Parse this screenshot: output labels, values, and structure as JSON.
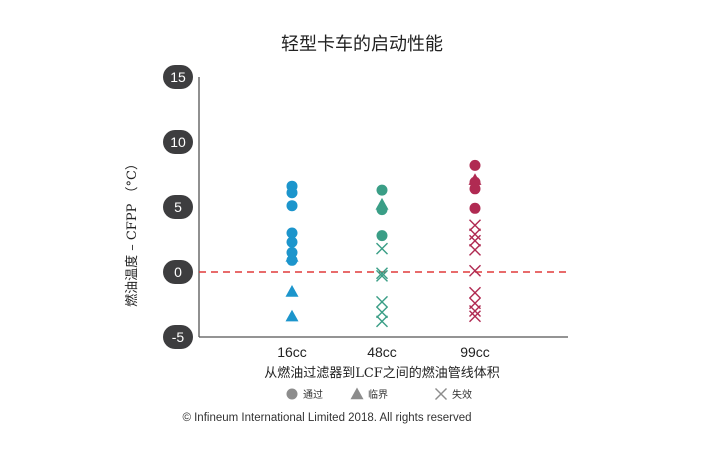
{
  "chart_data": {
    "type": "scatter",
    "title": "轻型卡车的启动性能",
    "xlabel": "从燃油过滤器到LCF之间的燃油管线体积",
    "ylabel": "燃油温度 – CFPP （°C）",
    "categories": [
      "16cc",
      "48cc",
      "99cc"
    ],
    "ylim": [
      -5,
      15
    ],
    "yticks": [
      15,
      10,
      5,
      0,
      -5
    ],
    "reference_line": {
      "y": 0,
      "style": "dashed",
      "color": "#e03a3a"
    },
    "legend": {
      "placement": "bottom",
      "entries": [
        {
          "marker": "circle",
          "label": "通过"
        },
        {
          "marker": "triangle",
          "label": "临界"
        },
        {
          "marker": "cross",
          "label": "失效"
        }
      ]
    },
    "category_colors": {
      "16cc": "#1c95cc",
      "48cc": "#3a9e86",
      "99cc": "#b02a52"
    },
    "series": [
      {
        "name": "通过",
        "marker": "circle",
        "points": [
          {
            "x": "16cc",
            "y": 6.6
          },
          {
            "x": "16cc",
            "y": 6.1
          },
          {
            "x": "16cc",
            "y": 5.1
          },
          {
            "x": "16cc",
            "y": 3.0
          },
          {
            "x": "16cc",
            "y": 2.3
          },
          {
            "x": "16cc",
            "y": 1.5
          },
          {
            "x": "16cc",
            "y": 0.9
          },
          {
            "x": "48cc",
            "y": 6.3
          },
          {
            "x": "48cc",
            "y": 4.8
          },
          {
            "x": "48cc",
            "y": 2.8
          },
          {
            "x": "99cc",
            "y": 8.2
          },
          {
            "x": "99cc",
            "y": 6.9
          },
          {
            "x": "99cc",
            "y": 6.4
          },
          {
            "x": "99cc",
            "y": 4.9
          }
        ]
      },
      {
        "name": "临界",
        "marker": "triangle",
        "points": [
          {
            "x": "16cc",
            "y": 1.2
          },
          {
            "x": "16cc",
            "y": -1.5
          },
          {
            "x": "16cc",
            "y": -3.4
          },
          {
            "x": "48cc",
            "y": 5.2
          },
          {
            "x": "99cc",
            "y": 7.1
          }
        ]
      },
      {
        "name": "失效",
        "marker": "cross",
        "points": [
          {
            "x": "48cc",
            "y": 1.8
          },
          {
            "x": "48cc",
            "y": -0.1
          },
          {
            "x": "48cc",
            "y": -0.3
          },
          {
            "x": "48cc",
            "y": -2.3
          },
          {
            "x": "48cc",
            "y": -3.1
          },
          {
            "x": "48cc",
            "y": -3.8
          },
          {
            "x": "99cc",
            "y": 3.6
          },
          {
            "x": "99cc",
            "y": 2.9
          },
          {
            "x": "99cc",
            "y": 2.4
          },
          {
            "x": "99cc",
            "y": 1.7
          },
          {
            "x": "99cc",
            "y": 0.1
          },
          {
            "x": "99cc",
            "y": -1.6
          },
          {
            "x": "99cc",
            "y": -2.4
          },
          {
            "x": "99cc",
            "y": -3.0
          },
          {
            "x": "99cc",
            "y": -3.4
          }
        ]
      }
    ],
    "legend_marker_color": "#8c8c8c",
    "grid": false
  },
  "footer": {
    "copyright": "© Infineum International Limited 2018. All rights reserved"
  }
}
